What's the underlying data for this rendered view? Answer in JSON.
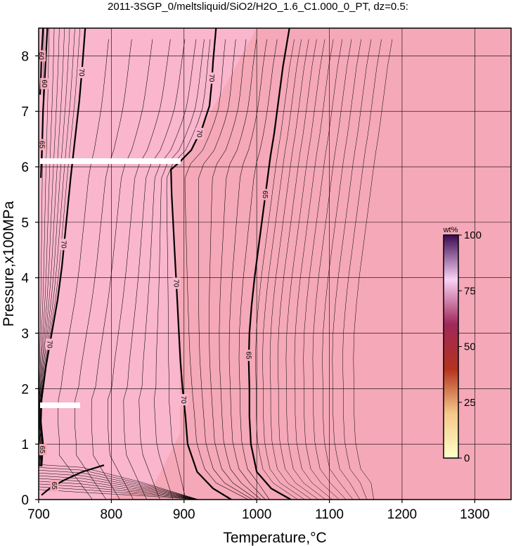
{
  "chart_data": {
    "type": "heatmap",
    "title": "2011-3SGP_0/meltsliquid/SiO2/H2O_1.6_C1.000_0_PT, dz=0.5:",
    "xlabel": "Temperature,°C",
    "ylabel": "Pressure,x100MPa",
    "xlim": [
      700,
      1350
    ],
    "ylim": [
      0,
      8.5
    ],
    "x_ticks": [
      "700",
      "800",
      "900",
      "1000",
      "1100",
      "1200",
      "1300"
    ],
    "y_ticks": [
      "0",
      "1",
      "2",
      "3",
      "4",
      "5",
      "6",
      "7",
      "8"
    ],
    "grid": true,
    "field_colors": {
      "low_T_region": "#f9b6cc",
      "high_T_region": "#f5a8b7",
      "contour_line": "#000000"
    },
    "colorbar": {
      "unit": "wt%",
      "range": [
        0,
        100
      ],
      "ticks": [
        "0",
        "25",
        "50",
        "75",
        "100"
      ],
      "colors": [
        "#ffffc8",
        "#f5c88a",
        "#b4321e",
        "#a0285a",
        "#fad2f5",
        "#3c0a50"
      ]
    },
    "contour_levels_labeled": [
      {
        "label": "70",
        "points": [
          [
            704,
            0.08
          ],
          [
            715,
            0.2
          ],
          [
            735,
            0.35
          ],
          [
            760,
            0.5
          ],
          [
            790,
            0.62
          ]
        ]
      },
      {
        "label": "70",
        "points": [
          [
            704,
            0.6
          ],
          [
            706,
            1.0
          ],
          [
            703,
            1.4
          ],
          [
            704,
            1.8
          ],
          [
            710,
            2.4
          ],
          [
            718,
            3.0
          ],
          [
            726,
            3.6
          ],
          [
            732,
            4.2
          ],
          [
            738,
            5.0
          ],
          [
            744,
            5.8
          ],
          [
            750,
            6.5
          ],
          [
            756,
            7.2
          ],
          [
            760,
            7.8
          ],
          [
            764,
            8.5
          ]
        ]
      },
      {
        "label": "70",
        "points": [
          [
            965,
            0.0
          ],
          [
            940,
            0.2
          ],
          [
            918,
            0.5
          ],
          [
            905,
            1.0
          ],
          [
            902,
            1.5
          ],
          [
            898,
            2.0
          ],
          [
            895,
            2.5
          ],
          [
            893,
            3.0
          ],
          [
            891,
            3.5
          ],
          [
            889,
            4.0
          ],
          [
            887,
            4.5
          ],
          [
            885,
            5.0
          ],
          [
            883,
            5.5
          ],
          [
            882,
            5.95
          ],
          [
            895,
            6.1
          ],
          [
            910,
            6.3
          ],
          [
            925,
            6.7
          ],
          [
            935,
            7.1
          ],
          [
            938,
            7.5
          ],
          [
            940,
            7.9
          ],
          [
            944,
            8.5
          ]
        ]
      },
      {
        "label": "65",
        "points": [
          [
            1047,
            0.0
          ],
          [
            1020,
            0.2
          ],
          [
            1000,
            0.5
          ],
          [
            992,
            1.0
          ],
          [
            990,
            1.5
          ],
          [
            990,
            2.0
          ],
          [
            989,
            2.5
          ],
          [
            990,
            3.0
          ],
          [
            993,
            3.5
          ],
          [
            997,
            4.0
          ],
          [
            1002,
            4.5
          ],
          [
            1007,
            5.0
          ],
          [
            1012,
            5.5
          ],
          [
            1017,
            6.0
          ],
          [
            1019,
            6.2
          ],
          [
            1024,
            6.6
          ],
          [
            1030,
            7.2
          ],
          [
            1036,
            7.8
          ],
          [
            1045,
            8.5
          ]
        ]
      },
      {
        "label": "65",
        "points": [
          [
            703,
            5.8
          ],
          [
            705,
            6.5
          ],
          [
            706,
            7.0
          ],
          [
            708,
            7.5
          ],
          [
            710,
            8.0
          ],
          [
            712,
            8.5
          ]
        ]
      },
      {
        "label": "60",
        "points": [
          [
            702,
            7.3
          ],
          [
            703,
            7.6
          ],
          [
            704,
            8.0
          ],
          [
            706,
            8.5
          ]
        ]
      }
    ],
    "annotation_labels": [
      "70",
      "70",
      "70",
      "70",
      "70",
      "70",
      "70",
      "65",
      "65",
      "65",
      "60",
      "60",
      "65",
      "65",
      "65"
    ]
  }
}
